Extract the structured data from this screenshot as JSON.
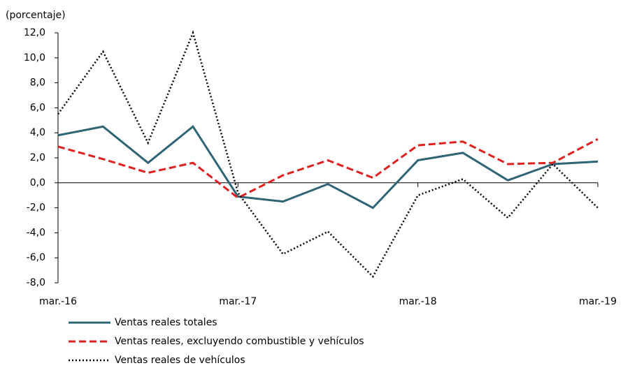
{
  "chart_data": {
    "type": "line",
    "ylabel": "(porcentaje)",
    "categories": [
      "mar.-16",
      null,
      null,
      null,
      "mar.-17",
      null,
      null,
      null,
      "mar.-18",
      null,
      null,
      null,
      "mar.-19"
    ],
    "ylim": [
      -8,
      12
    ],
    "yticks": [
      {
        "value": -8,
        "label": "-8,0"
      },
      {
        "value": -6,
        "label": "-6,0"
      },
      {
        "value": -4,
        "label": "-4,0"
      },
      {
        "value": -2,
        "label": "-2,0"
      },
      {
        "value": 0,
        "label": "0,0"
      },
      {
        "value": 2,
        "label": "2,0"
      },
      {
        "value": 4,
        "label": "4,0"
      },
      {
        "value": 6,
        "label": "6,0"
      },
      {
        "value": 8,
        "label": "8,0"
      },
      {
        "value": 10,
        "label": "10,0"
      },
      {
        "value": 12,
        "label": "12,0"
      }
    ],
    "series": [
      {
        "name": "Ventas reales totales",
        "color": "#2e6474",
        "dash": "solid",
        "values": [
          3.8,
          4.5,
          1.6,
          4.5,
          -1.1,
          -1.5,
          -0.1,
          -2.0,
          1.8,
          2.4,
          0.2,
          1.5,
          1.7
        ]
      },
      {
        "name": "Ventas reales, excluyendo combustible y vehículos",
        "color": "#e0201f",
        "dash": "dashed",
        "values": [
          2.9,
          1.9,
          0.8,
          1.6,
          -1.2,
          0.6,
          1.8,
          0.4,
          3.0,
          3.3,
          1.5,
          1.6,
          3.5
        ]
      },
      {
        "name": "Ventas  reales de vehículos",
        "color": "#000000",
        "dash": "dotted",
        "values": [
          5.5,
          10.5,
          3.2,
          12.0,
          -0.8,
          -5.7,
          -3.9,
          -7.5,
          -1.0,
          0.3,
          -2.8,
          1.5,
          -2.0
        ]
      }
    ]
  }
}
